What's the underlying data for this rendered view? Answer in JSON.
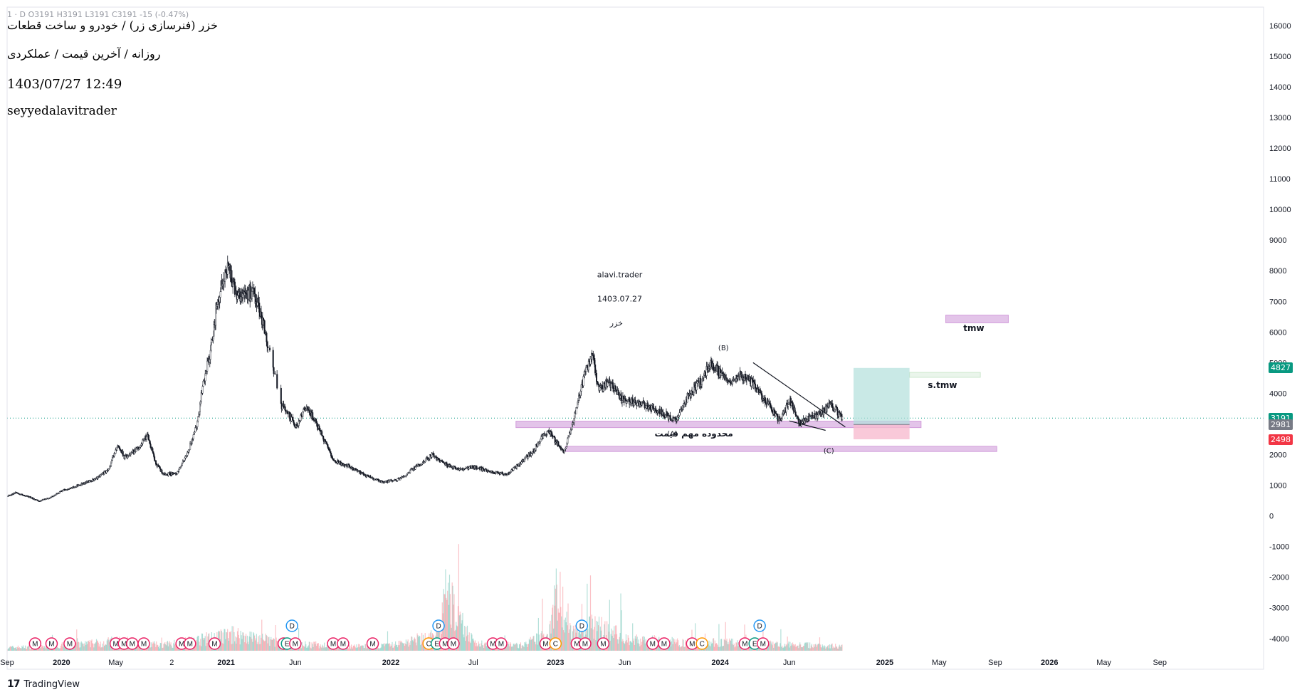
{
  "header": {
    "ohlc_line": "1 · D  O3191  H3191  L3191  C3191  -15 (-0.47%)",
    "symbol_title": "خزر (فنرسازی زر) / خودرو و ساخت قطعات",
    "subtitle": "روزانه / آخرین قیمت / عملکردی",
    "datetime": "1403/07/27 12:49",
    "author": "seyyedalavitrader"
  },
  "branding": {
    "logo_text": "TradingView",
    "logo_mark": "17"
  },
  "chart_data": {
    "type": "candlestick",
    "x_tick_labels": [
      "Sep",
      "2020",
      "May",
      "2",
      "2021",
      "Jun",
      "2022",
      "Jul",
      "2023",
      "Jun",
      "2024",
      "Jun",
      "2025",
      "May",
      "Sep",
      "2026",
      "May",
      "Sep"
    ],
    "x_tick_dates": [
      2019.67,
      2020.0,
      2020.33,
      2020.67,
      2021.0,
      2021.42,
      2022.0,
      2022.5,
      2023.0,
      2023.42,
      2024.0,
      2024.42,
      2025.0,
      2025.33,
      2025.67,
      2026.0,
      2026.33,
      2026.67
    ],
    "xlim": [
      2019.67,
      2027.3
    ],
    "y_ticks": [
      16000,
      15000,
      14000,
      13000,
      12000,
      11000,
      10000,
      9000,
      8000,
      7000,
      6000,
      5000,
      4000,
      3000,
      2000,
      1000,
      0,
      -1000,
      -2000,
      -3000,
      -4000
    ],
    "ylim": [
      -4400,
      16600
    ],
    "price_path": [
      [
        2019.67,
        650
      ],
      [
        2019.72,
        760
      ],
      [
        2019.8,
        620
      ],
      [
        2019.86,
        480
      ],
      [
        2019.93,
        600
      ],
      [
        2020.0,
        820
      ],
      [
        2020.1,
        1000
      ],
      [
        2020.2,
        1200
      ],
      [
        2020.28,
        1500
      ],
      [
        2020.34,
        2300
      ],
      [
        2020.38,
        1900
      ],
      [
        2020.45,
        2150
      ],
      [
        2020.52,
        2600
      ],
      [
        2020.57,
        1700
      ],
      [
        2020.62,
        1350
      ],
      [
        2020.7,
        1400
      ],
      [
        2020.76,
        2000
      ],
      [
        2020.82,
        3000
      ],
      [
        2020.86,
        4400
      ],
      [
        2020.9,
        5300
      ],
      [
        2020.94,
        6800
      ],
      [
        2020.98,
        7800
      ],
      [
        2021.01,
        8300
      ],
      [
        2021.04,
        7400
      ],
      [
        2021.08,
        7250
      ],
      [
        2021.12,
        7300
      ],
      [
        2021.16,
        7200
      ],
      [
        2021.2,
        6800
      ],
      [
        2021.25,
        5600
      ],
      [
        2021.33,
        3600
      ],
      [
        2021.37,
        3400
      ],
      [
        2021.42,
        2900
      ],
      [
        2021.48,
        3500
      ],
      [
        2021.53,
        3200
      ],
      [
        2021.58,
        2600
      ],
      [
        2021.65,
        1800
      ],
      [
        2021.75,
        1600
      ],
      [
        2021.85,
        1300
      ],
      [
        2021.95,
        1100
      ],
      [
        2022.05,
        1200
      ],
      [
        2022.15,
        1600
      ],
      [
        2022.25,
        2000
      ],
      [
        2022.32,
        1700
      ],
      [
        2022.42,
        1500
      ],
      [
        2022.5,
        1600
      ],
      [
        2022.6,
        1450
      ],
      [
        2022.7,
        1350
      ],
      [
        2022.78,
        1700
      ],
      [
        2022.86,
        2100
      ],
      [
        2022.92,
        2600
      ],
      [
        2022.96,
        2800
      ],
      [
        2023.0,
        2400
      ],
      [
        2023.05,
        2100
      ],
      [
        2023.1,
        3000
      ],
      [
        2023.14,
        3900
      ],
      [
        2023.18,
        4700
      ],
      [
        2023.22,
        5300
      ],
      [
        2023.26,
        4100
      ],
      [
        2023.32,
        4400
      ],
      [
        2023.4,
        3800
      ],
      [
        2023.48,
        3700
      ],
      [
        2023.56,
        3600
      ],
      [
        2023.64,
        3400
      ],
      [
        2023.72,
        3100
      ],
      [
        2023.8,
        3900
      ],
      [
        2023.88,
        4400
      ],
      [
        2023.94,
        5050
      ],
      [
        2024.0,
        4600
      ],
      [
        2024.06,
        4300
      ],
      [
        2024.12,
        4600
      ],
      [
        2024.2,
        4300
      ],
      [
        2024.28,
        3700
      ],
      [
        2024.36,
        3100
      ],
      [
        2024.42,
        3800
      ],
      [
        2024.48,
        3000
      ],
      [
        2024.54,
        3250
      ],
      [
        2024.6,
        3300
      ],
      [
        2024.66,
        3600
      ],
      [
        2024.7,
        3450
      ],
      [
        2024.74,
        3180
      ]
    ],
    "volume_axis_range": [
      0,
      600000
    ],
    "volume_profile": [
      [
        2019.67,
        6
      ],
      [
        2020.0,
        8
      ],
      [
        2020.35,
        18
      ],
      [
        2020.6,
        10
      ],
      [
        2020.95,
        25
      ],
      [
        2021.05,
        30
      ],
      [
        2021.4,
        12
      ],
      [
        2021.8,
        8
      ],
      [
        2022.0,
        10
      ],
      [
        2022.3,
        30
      ],
      [
        2022.32,
        110
      ],
      [
        2022.5,
        14
      ],
      [
        2022.8,
        10
      ],
      [
        2022.95,
        30
      ],
      [
        2023.0,
        110
      ],
      [
        2023.05,
        80
      ],
      [
        2023.1,
        35
      ],
      [
        2023.25,
        45
      ],
      [
        2023.45,
        20
      ],
      [
        2023.8,
        15
      ],
      [
        2024.0,
        15
      ],
      [
        2024.3,
        12
      ],
      [
        2024.6,
        10
      ],
      [
        2024.74,
        8
      ]
    ],
    "current_price": 3191,
    "axis_price_tags": [
      {
        "value": 4827,
        "label": "4827",
        "color": "#089981"
      },
      {
        "value": 3191,
        "label": "3191",
        "color": "#089981"
      },
      {
        "value": 2981,
        "label": "2981",
        "color": "#787b86"
      },
      {
        "value": 2498,
        "label": "2498",
        "color": "#f23645"
      }
    ],
    "zones": [
      {
        "name": "support-zone",
        "x": [
          2022.76,
          2025.22
        ],
        "y": [
          2880,
          3090
        ],
        "label": "محدوده مهم قیمت (A)"
      },
      {
        "name": "lower-zone",
        "x": [
          2023.06,
          2025.68
        ],
        "y": [
          2100,
          2270
        ],
        "label": "(C)"
      },
      {
        "name": "tmw-zone",
        "x": [
          2025.37,
          2025.75
        ],
        "y": [
          6300,
          6550
        ],
        "label": "tmw"
      },
      {
        "name": "s-tmw-zone",
        "x": [
          2025.15,
          2025.58
        ],
        "y": [
          4520,
          4680
        ],
        "label": "s.tmw"
      }
    ],
    "position_tool": {
      "x": [
        2024.81,
        2025.15
      ],
      "entry": 2981,
      "target": 4827,
      "stop": 2498
    },
    "trend_lines": [
      {
        "from": [
          2024.2,
          5000
        ],
        "to": [
          2024.76,
          2900
        ]
      },
      {
        "from": [
          2024.42,
          3100
        ],
        "to": [
          2024.64,
          2790
        ]
      }
    ],
    "wave_labels": [
      {
        "label": "(B)",
        "at": [
          2024.02,
          5400
        ]
      },
      {
        "label": "(A)",
        "at": [
          2023.71,
          2600
        ]
      },
      {
        "label": "(C)",
        "at": [
          2024.66,
          2050
        ]
      }
    ],
    "text_notes": [
      {
        "text": "alavi.trader",
        "at": [
          2023.39,
          7780
        ]
      },
      {
        "text": "1403.07.27",
        "at": [
          2023.39,
          6990
        ]
      },
      {
        "text": "خزر",
        "at": [
          2023.37,
          6200
        ]
      },
      {
        "text": "tmw",
        "at": [
          2025.54,
          6030
        ]
      },
      {
        "text": "s.tmw",
        "at": [
          2025.35,
          4170
        ]
      },
      {
        "text": "محدوده مهم قیمت",
        "at": [
          2023.84,
          2590
        ]
      }
    ],
    "event_markers": [
      {
        "x": 2019.84,
        "type": "M"
      },
      {
        "x": 2019.94,
        "type": "M"
      },
      {
        "x": 2020.05,
        "type": "M"
      },
      {
        "x": 2020.33,
        "type": "M"
      },
      {
        "x": 2020.38,
        "type": "M"
      },
      {
        "x": 2020.43,
        "type": "M"
      },
      {
        "x": 2020.5,
        "type": "M"
      },
      {
        "x": 2020.73,
        "type": "M"
      },
      {
        "x": 2020.78,
        "type": "M"
      },
      {
        "x": 2020.93,
        "type": "M"
      },
      {
        "x": 2021.35,
        "type": "M"
      },
      {
        "x": 2021.37,
        "type": "E"
      },
      {
        "x": 2021.42,
        "type": "M"
      },
      {
        "x": 2021.4,
        "type": "D"
      },
      {
        "x": 2021.65,
        "type": "M"
      },
      {
        "x": 2021.71,
        "type": "M"
      },
      {
        "x": 2021.89,
        "type": "M"
      },
      {
        "x": 2022.23,
        "type": "C"
      },
      {
        "x": 2022.28,
        "type": "E"
      },
      {
        "x": 2022.33,
        "type": "M"
      },
      {
        "x": 2022.29,
        "type": "D"
      },
      {
        "x": 2022.38,
        "type": "M"
      },
      {
        "x": 2022.62,
        "type": "M"
      },
      {
        "x": 2022.67,
        "type": "M"
      },
      {
        "x": 2022.94,
        "type": "M"
      },
      {
        "x": 2023.0,
        "type": "C"
      },
      {
        "x": 2023.13,
        "type": "M"
      },
      {
        "x": 2023.18,
        "type": "M"
      },
      {
        "x": 2023.16,
        "type": "D"
      },
      {
        "x": 2023.29,
        "type": "M"
      },
      {
        "x": 2023.59,
        "type": "M"
      },
      {
        "x": 2023.66,
        "type": "M"
      },
      {
        "x": 2023.83,
        "type": "M"
      },
      {
        "x": 2023.89,
        "type": "C"
      },
      {
        "x": 2024.15,
        "type": "M"
      },
      {
        "x": 2024.21,
        "type": "E"
      },
      {
        "x": 2024.26,
        "type": "M"
      },
      {
        "x": 2024.24,
        "type": "D"
      }
    ],
    "colors": {
      "bull": "#089981",
      "bear": "#f23645",
      "zone_fill": "#e1bee7",
      "zone_stroke": "#ce93d8",
      "target_fill": "#b2dfdb",
      "stop_fill": "#f8bbd0",
      "marker_m": "#e91e63",
      "marker_d": "#2196f3",
      "marker_c": "#ff9800",
      "marker_e": "#089981"
    }
  }
}
